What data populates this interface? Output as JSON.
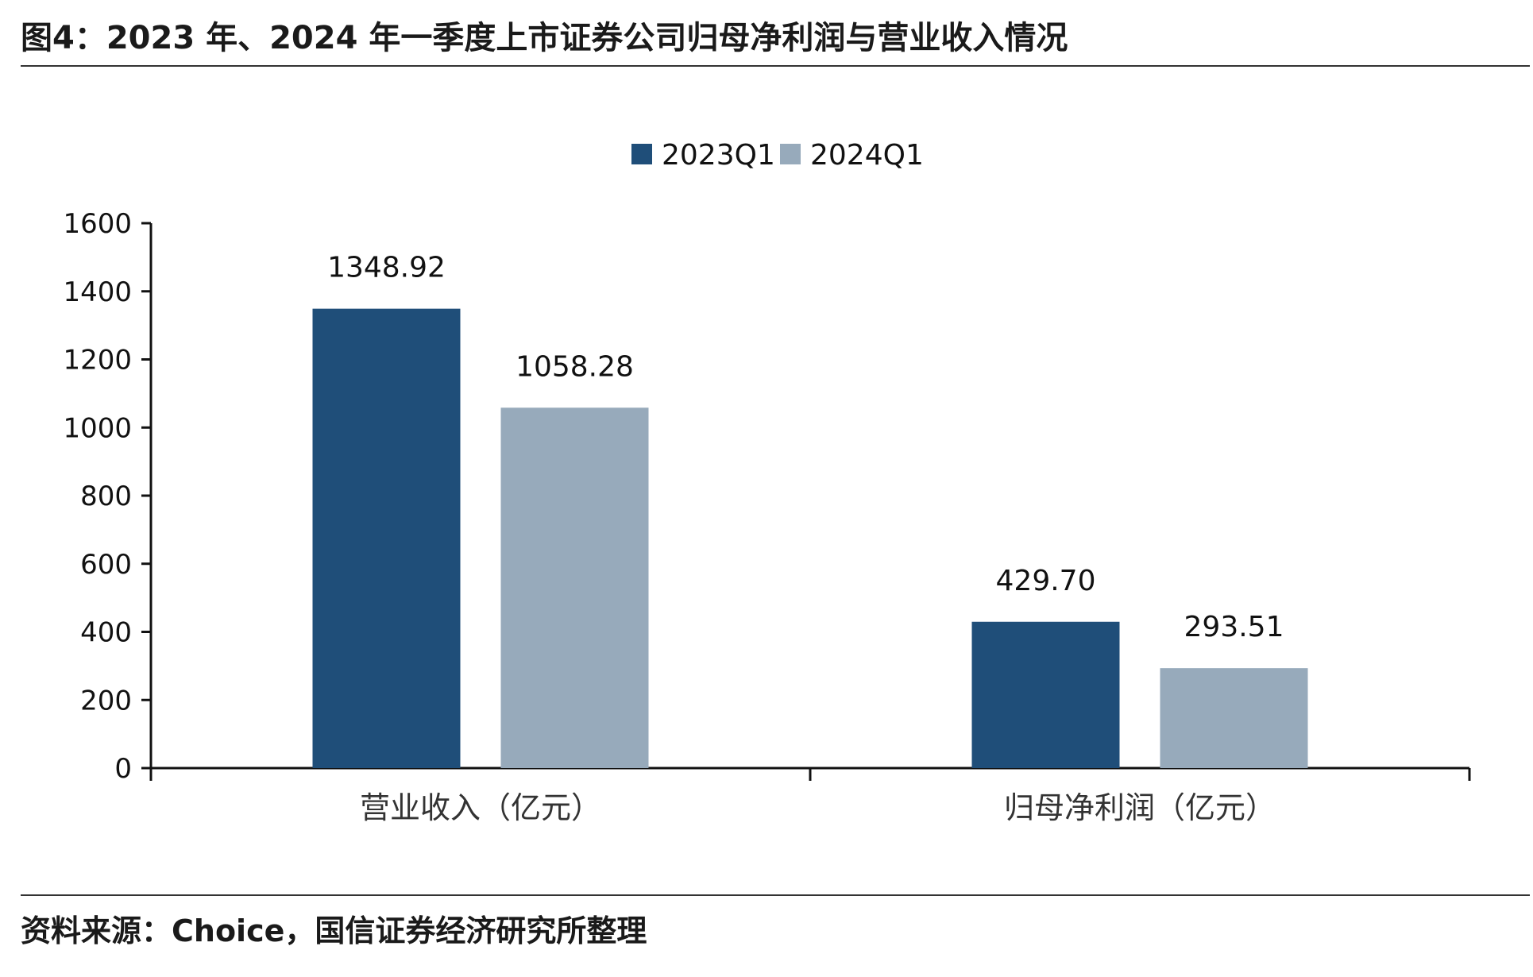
{
  "figure": {
    "title": "图4：2023 年、2024 年一季度上市证券公司归母净利润与营业收入情况",
    "source": "资料来源：Choice，国信证券经济研究所整理"
  },
  "colors": {
    "series_2023": "#1f4e79",
    "series_2024": "#97aabb",
    "axis": "#111111"
  },
  "chart_data": {
    "type": "bar",
    "categories": [
      "营业收入（亿元）",
      "归母净利润（亿元）"
    ],
    "series": [
      {
        "name": "2023Q1",
        "values": [
          1348.92,
          429.7
        ],
        "labels": [
          "1348.92",
          "429.70"
        ]
      },
      {
        "name": "2024Q1",
        "values": [
          1058.28,
          293.51
        ],
        "labels": [
          "1058.28",
          "293.51"
        ]
      }
    ],
    "ylim": [
      0,
      1600
    ],
    "yticks": [
      0,
      200,
      400,
      600,
      800,
      1000,
      1200,
      1400,
      1600
    ],
    "legend_position": "top-center",
    "grid": false
  }
}
